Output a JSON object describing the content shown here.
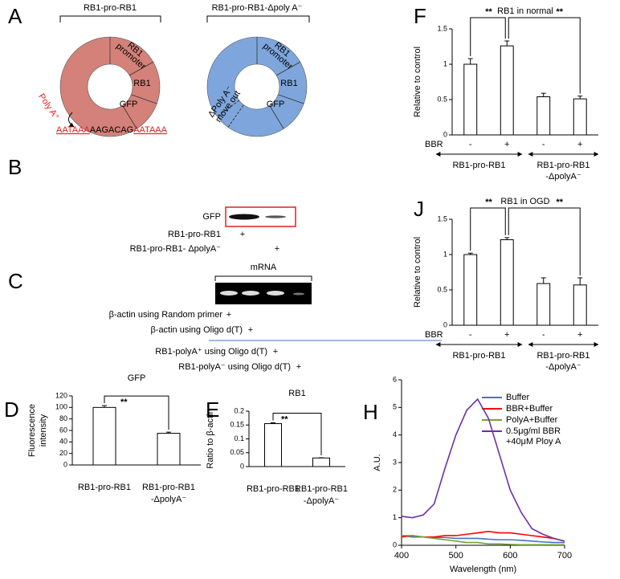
{
  "panel_a": {
    "letter": "A",
    "left": {
      "title": "RB1-pro-RB1",
      "segments": [
        [
          "RB1",
          "promoter"
        ],
        "RB1",
        "GFP"
      ],
      "polya": "Poly A⁺",
      "sequence": [
        "AATAAA",
        "AAGACAG",
        "AATAAA"
      ]
    },
    "right": {
      "title": "RB1-pro-RB1-Δpoly A⁻",
      "segments": [
        [
          "RB1",
          "promoter"
        ],
        "RB1",
        "GFP"
      ],
      "note": [
        "ΔPoly A⁻",
        "move out"
      ]
    }
  },
  "panel_b": {
    "letter": "B",
    "band_label": "GFP",
    "rows": [
      {
        "label": "RB1-pro-RB1",
        "mark": "+"
      },
      {
        "label": "RB1-pro-RB1- ΔpolyA⁻",
        "mark": "+"
      }
    ]
  },
  "panel_c": {
    "letter": "C",
    "header": "mRNA",
    "rows": [
      {
        "label": "β-actin using Random primer",
        "mark": "+"
      },
      {
        "label": "β-actin using Oligo d(T)",
        "mark": "+"
      },
      {
        "label": "RB1-polyA⁺ using Oligo d(T)",
        "mark": "+"
      },
      {
        "label": "RB1-polyA⁻ using Oligo d(T)",
        "mark": "+"
      }
    ]
  },
  "chart_data": [
    {
      "type": "bar",
      "panel": "D",
      "title": "GFP",
      "ylabel": [
        "Fluorescence",
        "intensity"
      ],
      "categories": [
        [
          "RB1-pro-RB1"
        ],
        [
          "RB1-pro-RB1",
          "-ΔpolyA⁻"
        ]
      ],
      "values": [
        100,
        55
      ],
      "errors": [
        3,
        2
      ],
      "ylim": [
        0,
        120
      ],
      "yticks": [
        0,
        20,
        40,
        60,
        80,
        100,
        120
      ],
      "significance": [
        "**"
      ]
    },
    {
      "type": "bar",
      "panel": "E",
      "title": "RB1",
      "ylabel": "Ratio to β-actin",
      "categories": [
        [
          "RB1-pro-RB1"
        ],
        [
          "RB1-pro-RB1",
          "-ΔpolyA⁻"
        ]
      ],
      "values": [
        0.155,
        0.031
      ],
      "errors": [
        0.003,
        0.001
      ],
      "ylim": [
        0,
        0.2
      ],
      "yticks": [
        0,
        0.05,
        0.1,
        0.15,
        0.2
      ],
      "significance": [
        "**"
      ]
    },
    {
      "type": "grouped-bar",
      "panel": "F",
      "title": "RB1 in normal",
      "ylabel": "Relative to control",
      "row_label": "BBR",
      "categories": [
        "-",
        "+",
        "-",
        "+"
      ],
      "groups": [
        [
          "RB1-pro-RB1"
        ],
        [
          "RB1-pro-RB1",
          "-ΔpolyA⁻"
        ]
      ],
      "values": [
        1.0,
        1.26,
        0.54,
        0.51
      ],
      "errors": [
        0.08,
        0.07,
        0.05,
        0.04
      ],
      "ylim": [
        0,
        1.5
      ],
      "yticks": [
        0,
        0.5,
        1,
        1.5
      ],
      "significance": [
        "**",
        "**"
      ]
    },
    {
      "type": "grouped-bar",
      "panel": "J",
      "title": "RB1 in OGD",
      "ylabel": "Relative to control",
      "row_label": "BBR",
      "categories": [
        "-",
        "+",
        "-",
        "+"
      ],
      "groups": [
        [
          "RB1-pro-RB1"
        ],
        [
          "RB1-pro-RB1",
          "-ΔpolyA⁻"
        ]
      ],
      "values": [
        1.0,
        1.21,
        0.59,
        0.57
      ],
      "errors": [
        0.02,
        0.03,
        0.08,
        0.1
      ],
      "ylim": [
        0,
        1.5
      ],
      "yticks": [
        0,
        0.5,
        1,
        1.5
      ],
      "significance": [
        "**",
        "**"
      ]
    },
    {
      "type": "line",
      "panel": "H",
      "xlabel": "Wavelength (nm)",
      "ylabel": "A.U.",
      "x": [
        400,
        420,
        440,
        460,
        480,
        500,
        520,
        540,
        560,
        580,
        600,
        620,
        640,
        660,
        680,
        700
      ],
      "series": [
        {
          "name": [
            "Buffer"
          ],
          "color": "#4472c4",
          "values": [
            0.35,
            0.3,
            0.3,
            0.28,
            0.28,
            0.25,
            0.25,
            0.25,
            0.22,
            0.2,
            0.2,
            0.18,
            0.15,
            0.12,
            0.1,
            0.1
          ]
        },
        {
          "name": [
            "BBR+Buffer"
          ],
          "color": "#ff0000",
          "values": [
            0.3,
            0.35,
            0.3,
            0.3,
            0.35,
            0.35,
            0.4,
            0.45,
            0.5,
            0.45,
            0.45,
            0.4,
            0.35,
            0.3,
            0.25,
            0.15
          ]
        },
        {
          "name": [
            "PolyA+Buffer"
          ],
          "color": "#77a13a",
          "values": [
            0.35,
            0.35,
            0.3,
            0.25,
            0.2,
            0.15,
            0.1,
            0.1,
            0.05,
            0.05,
            0.03,
            0.02,
            0.02,
            0.02,
            0.02,
            0.02
          ]
        },
        {
          "name": [
            "0.5μg/ml BBR",
            "+40μM Ploy A"
          ],
          "color": "#7030a0",
          "values": [
            1.05,
            1.0,
            1.1,
            1.5,
            2.8,
            4.0,
            4.9,
            5.3,
            4.6,
            3.3,
            2.0,
            1.2,
            0.6,
            0.4,
            0.25,
            0.15
          ]
        }
      ],
      "xlim": [
        400,
        700
      ],
      "xticks": [
        400,
        500,
        600,
        700
      ],
      "ylim": [
        0,
        6
      ],
      "yticks": [
        0,
        1,
        2,
        3,
        4,
        5,
        6
      ]
    }
  ]
}
